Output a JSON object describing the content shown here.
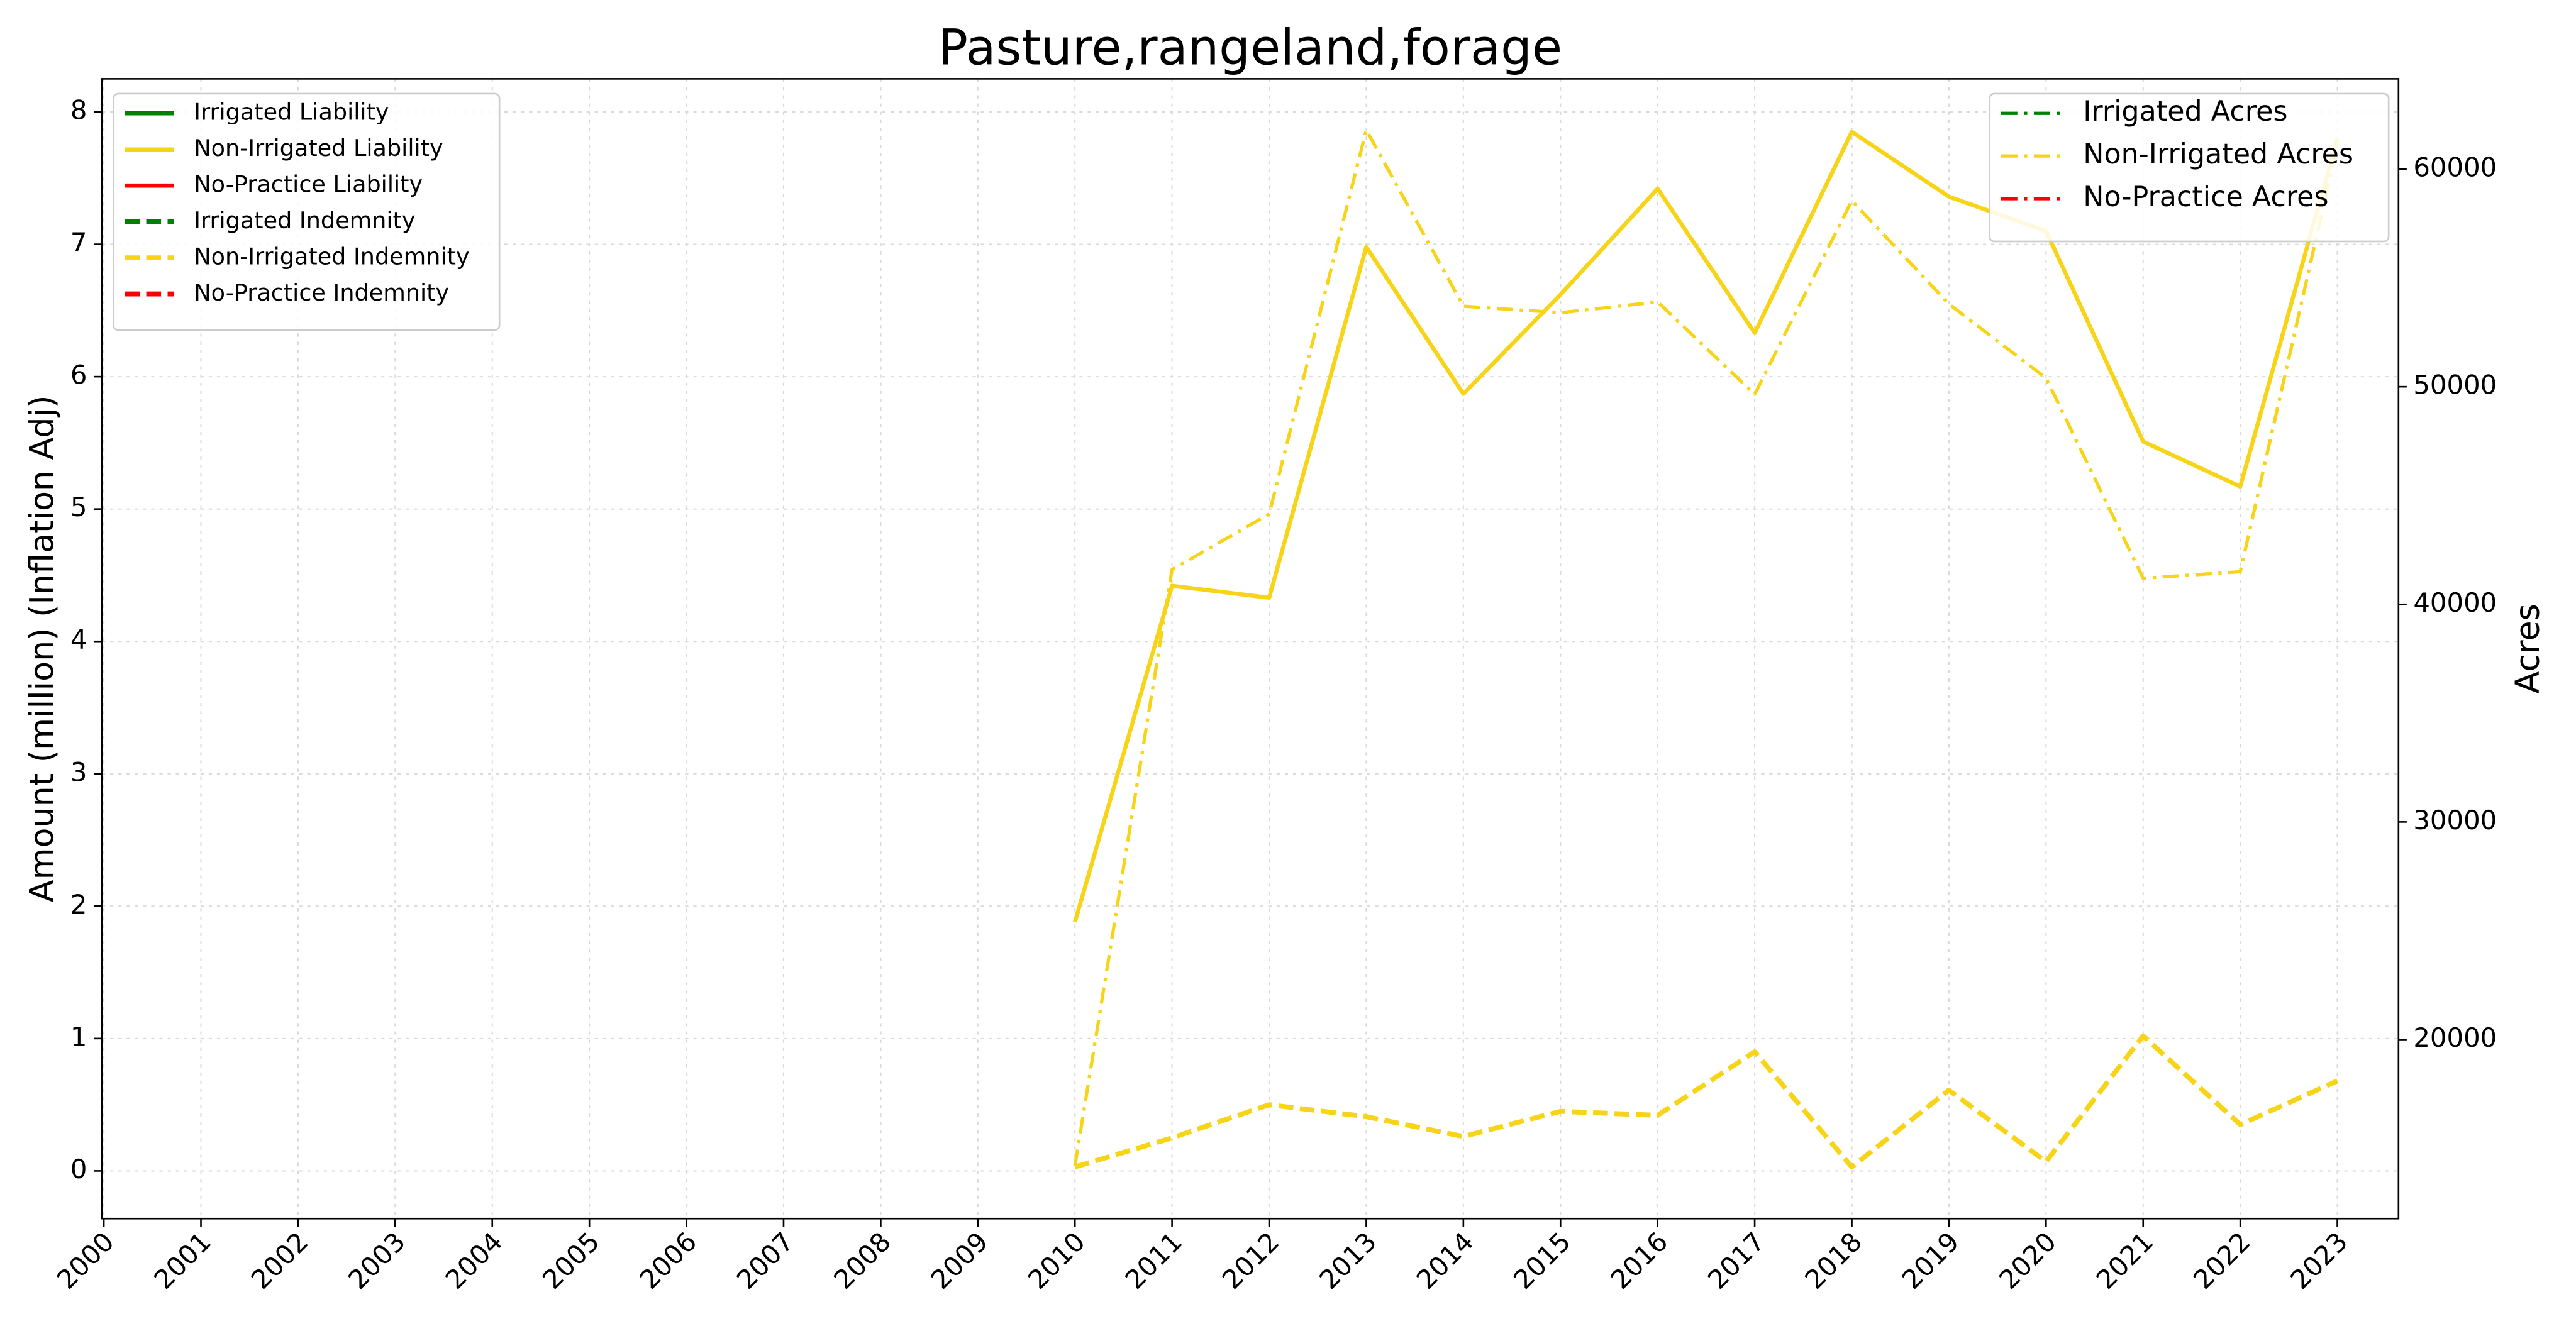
{
  "chart_data": {
    "type": "line",
    "title": "Pasture,rangeland,forage",
    "ylabel": "Amount (million) (Inflation Adj)",
    "y2label": "Acres",
    "x": [
      2000,
      2001,
      2002,
      2003,
      2004,
      2005,
      2006,
      2007,
      2008,
      2009,
      2010,
      2011,
      2012,
      2013,
      2014,
      2015,
      2016,
      2017,
      2018,
      2019,
      2020,
      2021,
      2022,
      2023
    ],
    "xlim": [
      1999.98,
      2023.63
    ],
    "xticks": [
      2000,
      2001,
      2002,
      2003,
      2004,
      2005,
      2006,
      2007,
      2008,
      2009,
      2010,
      2011,
      2012,
      2013,
      2014,
      2015,
      2016,
      2017,
      2018,
      2019,
      2020,
      2021,
      2022,
      2023
    ],
    "ylim": [
      -0.36,
      8.25
    ],
    "yticks": [
      0,
      1,
      2,
      3,
      4,
      5,
      6,
      7,
      8
    ],
    "y2lim": [
      11774,
      64150
    ],
    "y2ticks": [
      20000,
      30000,
      40000,
      50000,
      60000
    ],
    "grid": true,
    "legend": "upper left",
    "legend2": "upper right",
    "series": [
      {
        "name": "Irrigated Liability",
        "color": "#008000",
        "linestyle": "solid",
        "values": [
          null,
          null,
          null,
          null,
          null,
          null,
          null,
          null,
          null,
          null,
          null,
          null,
          null,
          null,
          null,
          null,
          null,
          null,
          null,
          null,
          null,
          null,
          null,
          null
        ]
      },
      {
        "name": "Non-Irrigated Liability",
        "color": "#f7d417",
        "linestyle": "solid",
        "values": [
          null,
          null,
          null,
          null,
          null,
          null,
          null,
          null,
          null,
          null,
          1.88,
          4.42,
          4.33,
          6.98,
          5.87,
          6.62,
          7.42,
          6.33,
          7.85,
          7.36,
          7.1,
          5.51,
          5.17,
          7.8
        ]
      },
      {
        "name": "No-Practice Liability",
        "color": "#ff0000",
        "linestyle": "solid",
        "values": [
          null,
          null,
          null,
          null,
          null,
          null,
          null,
          null,
          null,
          null,
          null,
          null,
          null,
          null,
          null,
          null,
          null,
          null,
          null,
          null,
          null,
          null,
          null,
          null
        ]
      },
      {
        "name": "Irrigated Indemnity",
        "color": "#008000",
        "linestyle": "dashed",
        "values": [
          null,
          null,
          null,
          null,
          null,
          null,
          null,
          null,
          null,
          null,
          null,
          null,
          null,
          null,
          null,
          null,
          null,
          null,
          null,
          null,
          null,
          null,
          null,
          null
        ]
      },
      {
        "name": "Non-Irrigated Indemnity",
        "color": "#f7d417",
        "linestyle": "dashed",
        "values": [
          null,
          null,
          null,
          null,
          null,
          null,
          null,
          null,
          null,
          null,
          0.03,
          0.25,
          0.5,
          0.41,
          0.26,
          0.45,
          0.42,
          0.9,
          0.03,
          0.61,
          0.07,
          1.02,
          0.35,
          0.68
        ]
      },
      {
        "name": "No-Practice Indemnity",
        "color": "#ff0000",
        "linestyle": "dashed",
        "values": [
          null,
          null,
          null,
          null,
          null,
          null,
          null,
          null,
          null,
          null,
          null,
          null,
          null,
          null,
          null,
          null,
          null,
          null,
          null,
          null,
          null,
          null,
          null,
          null
        ]
      },
      {
        "name": "Irrigated Acres",
        "color": "#008000",
        "linestyle": "dashdot",
        "axis": "y2",
        "values": [
          null,
          null,
          null,
          null,
          null,
          null,
          null,
          null,
          null,
          null,
          null,
          null,
          null,
          null,
          null,
          null,
          null,
          null,
          null,
          null,
          null,
          null,
          null,
          null
        ]
      },
      {
        "name": "Non-Irrigated Acres",
        "color": "#f7d417",
        "linestyle": "dashdot",
        "axis": "y2",
        "values": [
          null,
          null,
          null,
          null,
          null,
          null,
          null,
          null,
          null,
          null,
          14200,
          41600,
          44150,
          61800,
          53700,
          53400,
          53900,
          49650,
          58550,
          53800,
          50400,
          41200,
          41500,
          61100
        ]
      },
      {
        "name": "No-Practice Acres",
        "color": "#ff0000",
        "linestyle": "dashdot",
        "axis": "y2",
        "values": [
          null,
          null,
          null,
          null,
          null,
          null,
          null,
          null,
          null,
          null,
          null,
          null,
          null,
          null,
          null,
          null,
          null,
          null,
          null,
          null,
          null,
          null,
          null,
          null
        ]
      }
    ]
  }
}
